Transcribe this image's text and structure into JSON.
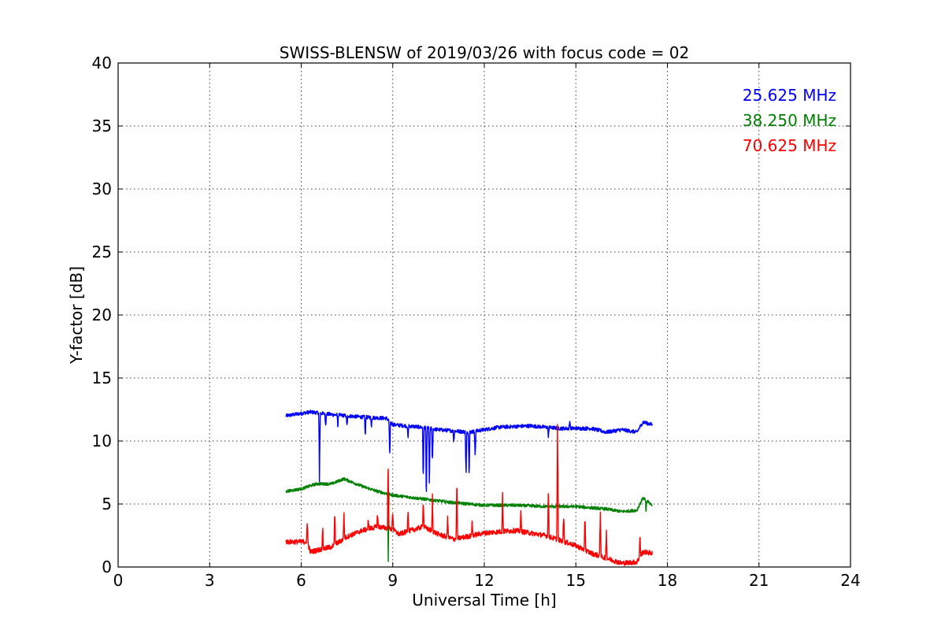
{
  "chart_data": {
    "type": "line",
    "title": "SWISS-BLENSW of 2019/03/26 with focus code = 02",
    "xlabel": "Universal Time [h]",
    "ylabel": "Y-factor [dB]",
    "xlim": [
      0,
      24
    ],
    "ylim": [
      0,
      40
    ],
    "xticks": [
      0,
      3,
      6,
      9,
      12,
      15,
      18,
      21,
      24
    ],
    "yticks": [
      0,
      5,
      10,
      15,
      20,
      25,
      30,
      35,
      40
    ],
    "grid": true,
    "legend_position": "top-right",
    "series": [
      {
        "name": "25.625 MHz",
        "color": "#0000ff",
        "baseline": [
          [
            5.5,
            12.0
          ],
          [
            6.3,
            12.3
          ],
          [
            7.0,
            12.1
          ],
          [
            8.0,
            11.9
          ],
          [
            8.8,
            11.8
          ],
          [
            9.0,
            11.3
          ],
          [
            9.9,
            11.1
          ],
          [
            10.5,
            10.9
          ],
          [
            11.5,
            10.7
          ],
          [
            12.5,
            11.1
          ],
          [
            13.5,
            11.2
          ],
          [
            14.5,
            11.0
          ],
          [
            15.5,
            11.0
          ],
          [
            16.0,
            10.7
          ],
          [
            16.5,
            10.9
          ],
          [
            17.0,
            10.7
          ],
          [
            17.2,
            11.5
          ],
          [
            17.5,
            11.3
          ]
        ],
        "noise": 0.15,
        "events": [
          [
            6.6,
            5.8
          ],
          [
            6.8,
            10.8
          ],
          [
            7.2,
            10.9
          ],
          [
            7.5,
            11.0
          ],
          [
            8.1,
            10.2
          ],
          [
            8.3,
            10.8
          ],
          [
            8.9,
            8.0
          ],
          [
            9.5,
            10.2
          ],
          [
            10.0,
            6.0
          ],
          [
            10.1,
            5.0
          ],
          [
            10.2,
            5.5
          ],
          [
            10.3,
            7.5
          ],
          [
            11.0,
            9.5
          ],
          [
            11.4,
            6.0
          ],
          [
            11.5,
            5.8
          ],
          [
            11.7,
            7.8
          ],
          [
            14.1,
            10.0
          ],
          [
            14.4,
            10.8
          ],
          [
            14.8,
            11.8
          ]
        ]
      },
      {
        "name": "38.250 MHz",
        "color": "#008000",
        "baseline": [
          [
            5.5,
            6.0
          ],
          [
            6.0,
            6.2
          ],
          [
            6.5,
            6.6
          ],
          [
            7.0,
            6.6
          ],
          [
            7.4,
            7.0
          ],
          [
            8.0,
            6.4
          ],
          [
            8.5,
            6.0
          ],
          [
            9.0,
            5.7
          ],
          [
            10.0,
            5.4
          ],
          [
            11.0,
            5.1
          ],
          [
            12.0,
            4.9
          ],
          [
            13.0,
            4.9
          ],
          [
            14.0,
            4.8
          ],
          [
            15.0,
            4.8
          ],
          [
            16.0,
            4.6
          ],
          [
            16.5,
            4.4
          ],
          [
            17.0,
            4.5
          ],
          [
            17.2,
            5.5
          ],
          [
            17.5,
            4.9
          ]
        ],
        "noise": 0.12,
        "events": [
          [
            8.85,
            0.0
          ],
          [
            17.3,
            4.2
          ]
        ]
      },
      {
        "name": "70.625 MHz",
        "color": "#ff0000",
        "baseline": [
          [
            5.5,
            2.0
          ],
          [
            6.2,
            2.0
          ],
          [
            6.3,
            1.2
          ],
          [
            7.0,
            1.6
          ],
          [
            7.5,
            2.4
          ],
          [
            8.0,
            2.9
          ],
          [
            8.5,
            3.2
          ],
          [
            9.0,
            3.0
          ],
          [
            9.2,
            2.6
          ],
          [
            10.0,
            3.2
          ],
          [
            10.5,
            2.6
          ],
          [
            11.0,
            2.2
          ],
          [
            12.0,
            2.7
          ],
          [
            13.0,
            2.9
          ],
          [
            14.0,
            2.5
          ],
          [
            15.0,
            1.7
          ],
          [
            15.5,
            1.1
          ],
          [
            16.0,
            0.7
          ],
          [
            16.5,
            0.3
          ],
          [
            17.0,
            0.4
          ],
          [
            17.2,
            1.2
          ],
          [
            17.5,
            1.1
          ]
        ],
        "noise": 0.2,
        "events": [
          [
            6.2,
            4.3
          ],
          [
            6.7,
            3.7
          ],
          [
            7.1,
            5.0
          ],
          [
            7.4,
            4.8
          ],
          [
            8.2,
            3.9
          ],
          [
            8.5,
            4.5
          ],
          [
            8.85,
            10.0
          ],
          [
            9.0,
            5.0
          ],
          [
            9.5,
            5.5
          ],
          [
            10.0,
            6.2
          ],
          [
            10.3,
            6.0
          ],
          [
            10.8,
            4.5
          ],
          [
            11.1,
            7.5
          ],
          [
            11.6,
            4.0
          ],
          [
            12.6,
            6.5
          ],
          [
            13.2,
            5.2
          ],
          [
            14.1,
            7.5
          ],
          [
            14.4,
            14.5
          ],
          [
            14.6,
            5.5
          ],
          [
            15.3,
            5.0
          ],
          [
            15.8,
            5.8
          ],
          [
            16.0,
            3.5
          ],
          [
            17.1,
            3.0
          ]
        ]
      }
    ]
  }
}
